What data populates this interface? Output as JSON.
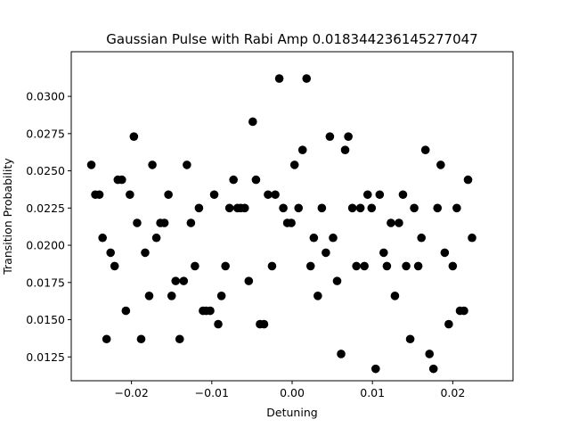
{
  "chart_data": {
    "type": "scatter",
    "title": "Gaussian Pulse with Rabi Amp 0.018344236145277047",
    "xlabel": "Detuning",
    "ylabel": "Transition Probability",
    "xlim": [
      -0.0275,
      0.0275
    ],
    "ylim": [
      0.0109,
      0.033
    ],
    "xticks": [
      -0.02,
      -0.01,
      0.0,
      0.01,
      0.02
    ],
    "xtick_labels": [
      "−0.02",
      "−0.01",
      "0.00",
      "0.01",
      "0.02"
    ],
    "yticks": [
      0.0125,
      0.015,
      0.0175,
      0.02,
      0.0225,
      0.025,
      0.0275,
      0.03
    ],
    "ytick_labels": [
      "0.0125",
      "0.0150",
      "0.0175",
      "0.0200",
      "0.0225",
      "0.0250",
      "0.0275",
      "0.0300"
    ],
    "marker_color": "#000000",
    "grid": false,
    "points": [
      [
        -0.025,
        0.0254
      ],
      [
        -0.0245,
        0.0234
      ],
      [
        -0.024,
        0.0234
      ],
      [
        -0.0236,
        0.0205
      ],
      [
        -0.0231,
        0.0137
      ],
      [
        -0.0226,
        0.0195
      ],
      [
        -0.0221,
        0.0186
      ],
      [
        -0.0217,
        0.0244
      ],
      [
        -0.0212,
        0.0244
      ],
      [
        -0.0207,
        0.0156
      ],
      [
        -0.0202,
        0.0234
      ],
      [
        -0.0197,
        0.0273
      ],
      [
        -0.0193,
        0.0215
      ],
      [
        -0.0188,
        0.0137
      ],
      [
        -0.0183,
        0.0195
      ],
      [
        -0.0178,
        0.0166
      ],
      [
        -0.0174,
        0.0254
      ],
      [
        -0.0169,
        0.0205
      ],
      [
        -0.0164,
        0.0215
      ],
      [
        -0.0159,
        0.0215
      ],
      [
        -0.0154,
        0.0234
      ],
      [
        -0.015,
        0.0166
      ],
      [
        -0.0145,
        0.0176
      ],
      [
        -0.014,
        0.0137
      ],
      [
        -0.0135,
        0.0176
      ],
      [
        -0.0131,
        0.0254
      ],
      [
        -0.0126,
        0.0215
      ],
      [
        -0.0121,
        0.0186
      ],
      [
        -0.0116,
        0.0225
      ],
      [
        -0.0111,
        0.0156
      ],
      [
        -0.0107,
        0.0156
      ],
      [
        -0.0102,
        0.0156
      ],
      [
        -0.0097,
        0.0234
      ],
      [
        -0.0092,
        0.0147
      ],
      [
        -0.0088,
        0.0166
      ],
      [
        -0.0083,
        0.0186
      ],
      [
        -0.0078,
        0.0225
      ],
      [
        -0.0073,
        0.0244
      ],
      [
        -0.0068,
        0.0225
      ],
      [
        -0.0064,
        0.0225
      ],
      [
        -0.0059,
        0.0225
      ],
      [
        -0.0054,
        0.0176
      ],
      [
        -0.0049,
        0.0283
      ],
      [
        -0.0045,
        0.0244
      ],
      [
        -0.004,
        0.0147
      ],
      [
        -0.0035,
        0.0147
      ],
      [
        -0.003,
        0.0234
      ],
      [
        -0.0025,
        0.0186
      ],
      [
        -0.0021,
        0.0234
      ],
      [
        -0.0016,
        0.0312
      ],
      [
        -0.0011,
        0.0225
      ],
      [
        -0.0006,
        0.0215
      ],
      [
        -0.0001,
        0.0215
      ],
      [
        0.0003,
        0.0254
      ],
      [
        0.0008,
        0.0225
      ],
      [
        0.0013,
        0.0264
      ],
      [
        0.0018,
        0.0312
      ],
      [
        0.0023,
        0.0186
      ],
      [
        0.0027,
        0.0205
      ],
      [
        0.0032,
        0.0166
      ],
      [
        0.0037,
        0.0225
      ],
      [
        0.0042,
        0.0195
      ],
      [
        0.0047,
        0.0273
      ],
      [
        0.0051,
        0.0205
      ],
      [
        0.0056,
        0.0176
      ],
      [
        0.0061,
        0.0127
      ],
      [
        0.0066,
        0.0264
      ],
      [
        0.007,
        0.0273
      ],
      [
        0.0075,
        0.0225
      ],
      [
        0.008,
        0.0186
      ],
      [
        0.0085,
        0.0225
      ],
      [
        0.009,
        0.0186
      ],
      [
        0.0094,
        0.0234
      ],
      [
        0.0099,
        0.0225
      ],
      [
        0.0104,
        0.0117
      ],
      [
        0.0109,
        0.0234
      ],
      [
        0.0114,
        0.0195
      ],
      [
        0.0118,
        0.0186
      ],
      [
        0.0123,
        0.0215
      ],
      [
        0.0128,
        0.0166
      ],
      [
        0.0133,
        0.0215
      ],
      [
        0.0138,
        0.0234
      ],
      [
        0.0142,
        0.0186
      ],
      [
        0.0147,
        0.0137
      ],
      [
        0.0152,
        0.0225
      ],
      [
        0.0157,
        0.0186
      ],
      [
        0.0161,
        0.0205
      ],
      [
        0.0166,
        0.0264
      ],
      [
        0.0171,
        0.0127
      ],
      [
        0.0176,
        0.0117
      ],
      [
        0.0181,
        0.0225
      ],
      [
        0.0185,
        0.0254
      ],
      [
        0.019,
        0.0195
      ],
      [
        0.0195,
        0.0147
      ],
      [
        0.02,
        0.0186
      ],
      [
        0.0205,
        0.0225
      ],
      [
        0.0209,
        0.0156
      ],
      [
        0.0214,
        0.0156
      ],
      [
        0.0219,
        0.0244
      ],
      [
        0.0224,
        0.0205
      ]
    ]
  }
}
